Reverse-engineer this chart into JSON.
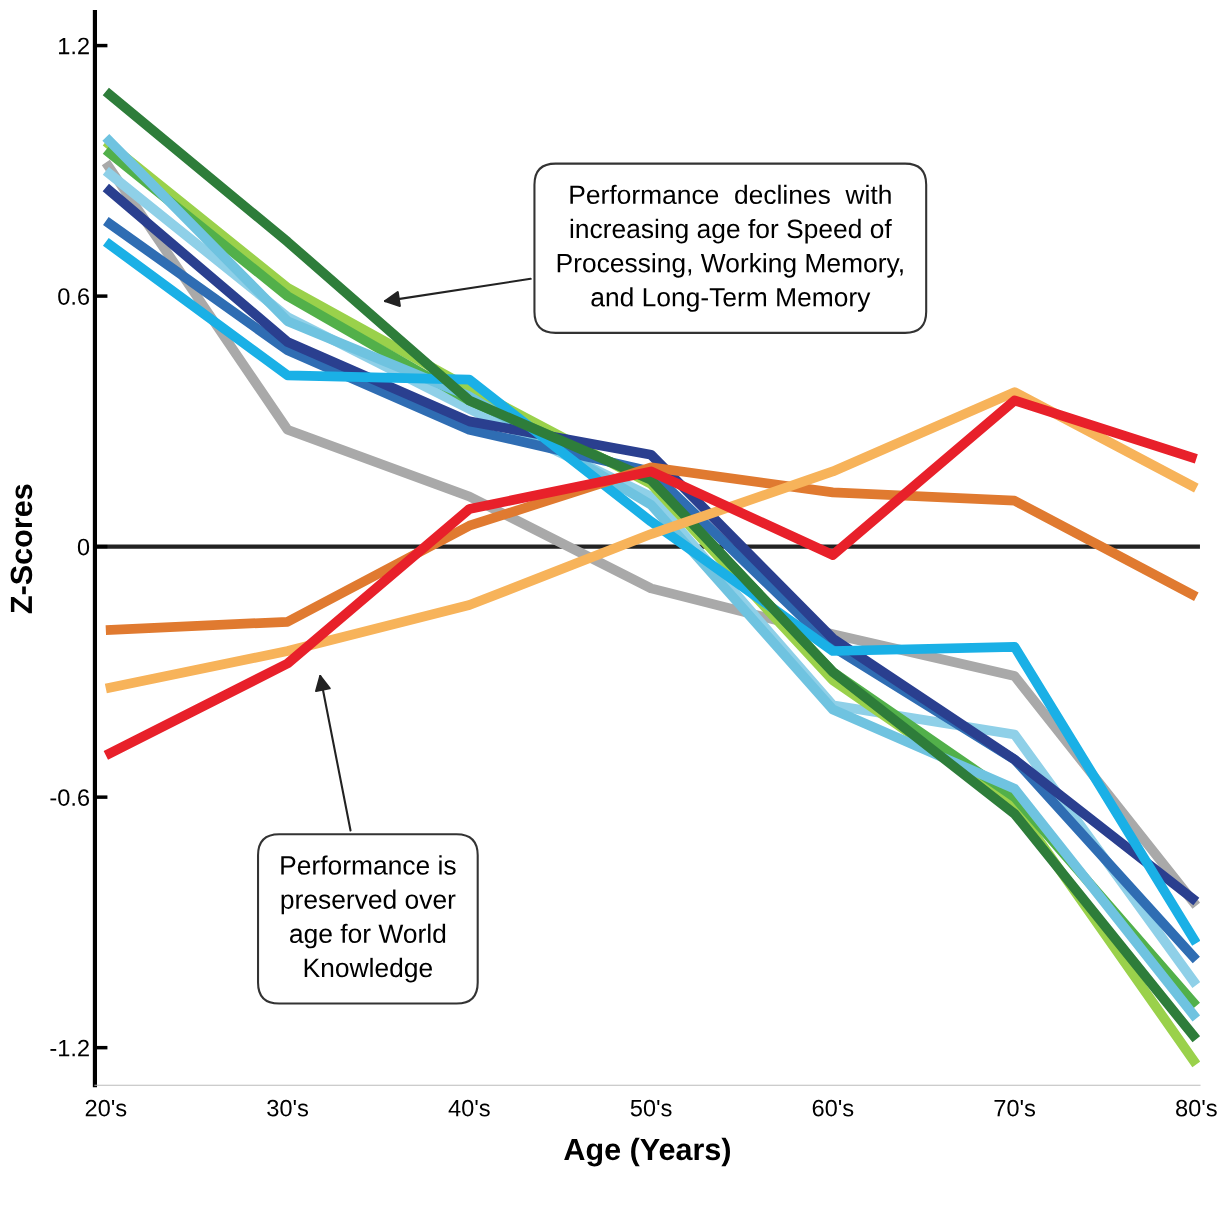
{
  "chart_data": {
    "type": "line",
    "xlabel": "Age (Years)",
    "ylabel": "Z-Scores",
    "categories": [
      "20's",
      "30's",
      "40's",
      "50's",
      "60's",
      "70's",
      "80's"
    ],
    "ylim": [
      -1.29,
      1.28
    ],
    "yticks": [
      {
        "value": -1.2,
        "label": "-1.2"
      },
      {
        "value": -0.6,
        "label": "-0.6"
      },
      0,
      0.6,
      1.2
    ],
    "grid": false,
    "legend": false,
    "marker": "none",
    "line_style": "solid",
    "ref_lines": [
      {
        "axis": "y",
        "value": 0,
        "color": "#222222"
      }
    ],
    "series": [
      {
        "color": "#a9a9a9",
        "values": [
          0.92,
          0.28,
          0.12,
          -0.1,
          -0.21,
          -0.31,
          -0.86
        ]
      },
      {
        "color": "#8fd0e8",
        "values": [
          0.9,
          0.55,
          0.33,
          0.12,
          -0.38,
          -0.45,
          -1.05
        ]
      },
      {
        "color": "#9ad14b",
        "values": [
          0.97,
          0.62,
          0.38,
          0.15,
          -0.32,
          -0.62,
          -1.24
        ]
      },
      {
        "color": "#52b04a",
        "values": [
          0.95,
          0.6,
          0.35,
          0.16,
          -0.3,
          -0.6,
          -1.1
        ]
      },
      {
        "color": "#6fc3e0",
        "values": [
          0.98,
          0.54,
          0.36,
          0.1,
          -0.39,
          -0.58,
          -1.13
        ]
      },
      {
        "color": "#2f6db3",
        "values": [
          0.78,
          0.47,
          0.28,
          0.18,
          -0.24,
          -0.51,
          -0.99
        ]
      },
      {
        "color": "#2a3f8f",
        "values": [
          0.86,
          0.49,
          0.3,
          0.22,
          -0.22,
          -0.51,
          -0.85
        ]
      },
      {
        "color": "#1ab0e6",
        "values": [
          0.73,
          0.41,
          0.4,
          0.06,
          -0.25,
          -0.24,
          -0.95
        ]
      },
      {
        "color": "#2e7d3a",
        "values": [
          1.09,
          0.73,
          0.35,
          0.16,
          -0.3,
          -0.64,
          -1.18
        ]
      },
      {
        "color": "#e07a30",
        "values": [
          -0.2,
          -0.18,
          0.05,
          0.19,
          0.13,
          0.11,
          -0.12
        ]
      },
      {
        "color": "#f7b35a",
        "values": [
          -0.34,
          -0.25,
          -0.14,
          0.03,
          0.18,
          0.37,
          0.14
        ]
      },
      {
        "color": "#e8202a",
        "values": [
          -0.5,
          -0.28,
          0.09,
          0.18,
          -0.02,
          0.35,
          0.21
        ]
      }
    ],
    "annotations": [
      "Performance  declines  with\nincreasing age for Speed of\nProcessing, Working Memory,\nand Long-Term Memory",
      "Performance is\npreserved over\nage for World\nKnowledge"
    ]
  }
}
